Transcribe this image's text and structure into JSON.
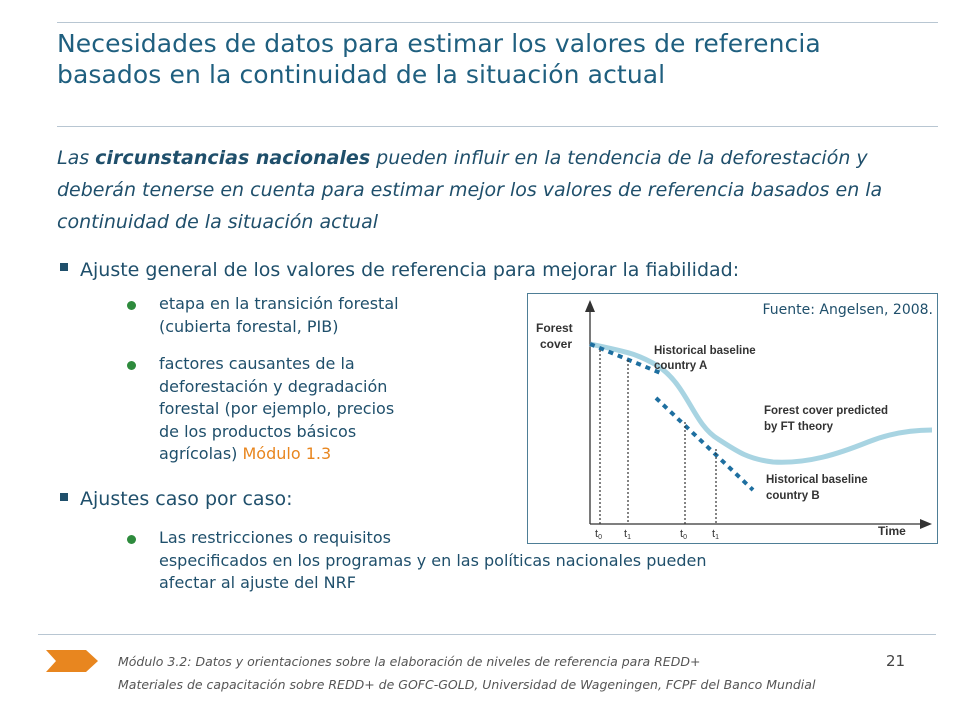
{
  "slide": {
    "title": "Necesidades de datos para estimar los valores de referencia basados en la continuidad de la situación actual",
    "intro_pre": "Las ",
    "intro_bold": "circunstancias nacionales",
    "intro_post": " pueden influir en la tendencia de la deforestación y deberán tenerse en cuenta para estimar mejor los valores de referencia basados en la continuidad de la situación actual",
    "bullet1": "Ajuste general de los valores de referencia para mejorar la fiabilidad:",
    "sub1_line1": "etapa en la transición forestal",
    "sub1_line2": "(cubierta forestal, PIB)",
    "sub2_line1": "factores causantes de la",
    "sub2_line2": "deforestación y degradación",
    "sub2_line3": "forestal (por ejemplo, precios",
    "sub2_line4": "de los productos básicos",
    "sub2_line5": "agrícolas)",
    "sub2_module": "Módulo 1.3",
    "bullet2": "Ajustes caso por caso:",
    "sub3_line1": "Las restricciones o requisitos",
    "sub3_line2": "especificados en los programas y en las políticas nacionales pueden",
    "sub3_line3": "afectar al ajuste del NRF"
  },
  "figure": {
    "source": "Fuente: Angelsen, 2008.",
    "y_label_1": "Forest",
    "y_label_2": "cover",
    "x_label": "Time",
    "label_a_1": "Historical baseline",
    "label_a_2": "country A",
    "label_ft_1": "Forest cover predicted",
    "label_ft_2": "by FT theory",
    "label_b_1": "Historical baseline",
    "label_b_2": "country B",
    "tick_t0a": "t",
    "tick_t0a_sub": "0",
    "tick_t1a": "t",
    "tick_t1a_sub": "1",
    "tick_t0b": "t",
    "tick_t0b_sub": "0",
    "tick_t1b": "t",
    "tick_t1b_sub": "1",
    "curve_color": "#a8d4e2",
    "baseline_color": "#1e6fa0"
  },
  "footer": {
    "line1": "Módulo 3.2: Datos y orientaciones sobre la elaboración de niveles de referencia para REDD+",
    "line2": "Materiales de capacitación sobre REDD+ de GOFC-GOLD, Universidad de Wageningen, FCPF del Banco Mundial",
    "page": "21",
    "arrow_color": "#e8861f"
  }
}
